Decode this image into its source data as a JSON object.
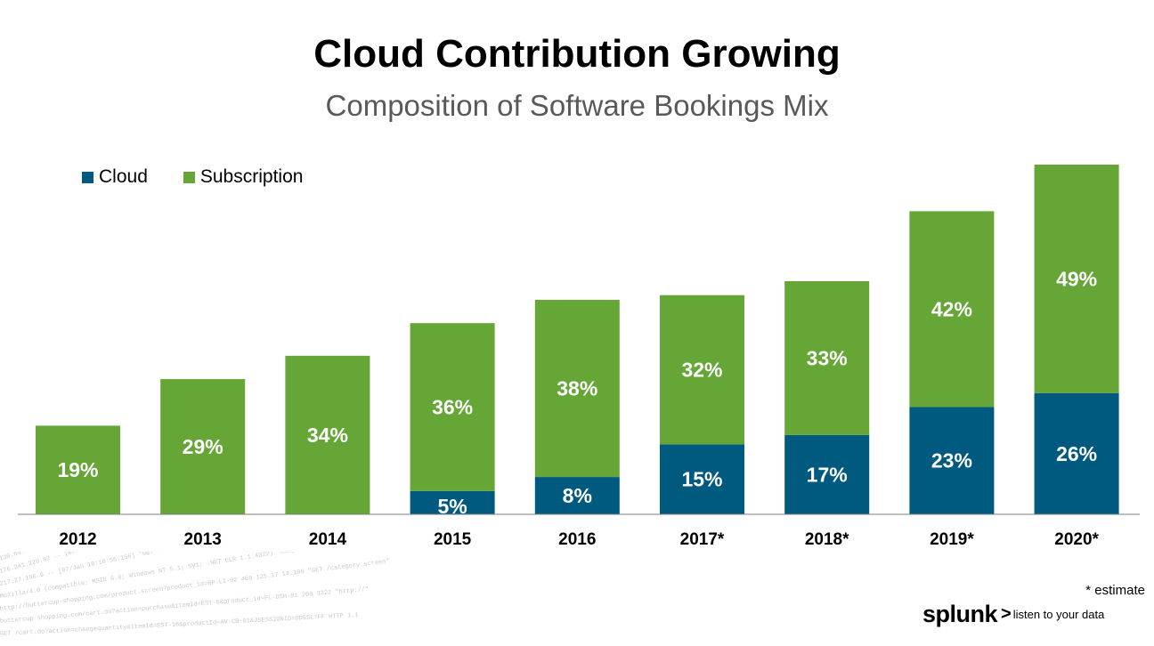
{
  "header": {
    "title": "Cloud Contribution Growing",
    "subtitle": "Composition of Software Bookings Mix"
  },
  "legend": [
    {
      "label": "Cloud",
      "color": "#005a80"
    },
    {
      "label": "Subscription",
      "color": "#65a637"
    }
  ],
  "footer": {
    "note": "* estimate",
    "brand": "splunk",
    "brand_chevron": ">",
    "tagline": "listen to your data"
  },
  "chart_data": {
    "type": "bar",
    "stacked": true,
    "title": "Cloud Contribution Growing",
    "subtitle": "Composition of Software Bookings Mix",
    "categories": [
      "2012",
      "2013",
      "2014",
      "2015",
      "2016",
      "2017*",
      "2018*",
      "2019*",
      "2020*"
    ],
    "series": [
      {
        "name": "Cloud",
        "color": "#005a80",
        "values": [
          0,
          0,
          0,
          5,
          8,
          15,
          17,
          23,
          26
        ],
        "labels": [
          "",
          "",
          "",
          "5%",
          "8%",
          "15%",
          "17%",
          "23%",
          "26%"
        ]
      },
      {
        "name": "Subscription",
        "color": "#65a637",
        "values": [
          19,
          29,
          34,
          36,
          38,
          32,
          33,
          42,
          49
        ],
        "labels": [
          "19%",
          "29%",
          "34%",
          "36%",
          "38%",
          "32%",
          "33%",
          "42%",
          "49%"
        ]
      }
    ],
    "xlabel": "",
    "ylabel": "",
    "ylim": [
      0,
      75
    ],
    "grid": false,
    "legend_position": "top-left"
  }
}
